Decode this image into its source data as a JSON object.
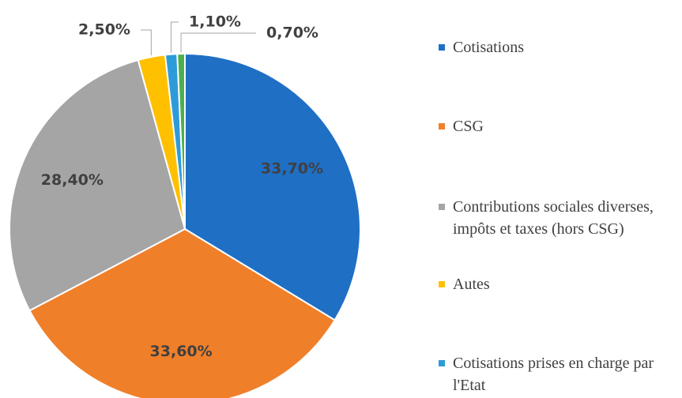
{
  "chart_data": {
    "type": "pie",
    "categories": [
      "Cotisations",
      "CSG",
      "Contributions sociales diverses, impôts et taxes (hors CSG)",
      "Autes",
      "Cotisations prises en charge par l'Etat",
      null
    ],
    "values": [
      33.7,
      33.6,
      28.4,
      2.5,
      1.1,
      0.7
    ],
    "value_labels": [
      "33,70%",
      "33,60%",
      "28,40%",
      "2,50%",
      "1,10%",
      "0,70%"
    ],
    "colors": [
      "#1f6fc5",
      "#f07f2a",
      "#a5a5a5",
      "#ffc000",
      "#2e9bd9",
      "#4caf50"
    ]
  }
}
